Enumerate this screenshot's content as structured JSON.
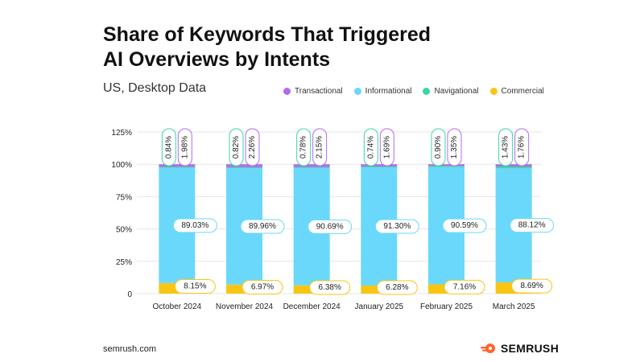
{
  "colors": {
    "transactional": "#B06BF0",
    "informational": "#6AD8FB",
    "navigational": "#3CD6A6",
    "commercial": "#F9C513",
    "grid": "#E6E6E6",
    "text": "#222222",
    "brand": "#FF642D"
  },
  "footer": {
    "site": "semrush.com",
    "brand": "SEMRUSH"
  },
  "chart_data": {
    "type": "bar",
    "stacked": true,
    "title": "Share of Keywords That Triggered AI Overviews by Intents",
    "title_lines": [
      "Share of Keywords That Triggered",
      "AI Overviews by Intents"
    ],
    "subtitle": "US, Desktop Data",
    "xlabel": "",
    "ylabel": "",
    "ylim": [
      0,
      125
    ],
    "yticks": [
      0,
      25,
      50,
      75,
      100,
      125
    ],
    "ytick_labels": [
      "0",
      "25%",
      "50%",
      "75%",
      "100%",
      "125%"
    ],
    "grid": true,
    "legend_position": "top-right",
    "categories": [
      "October 2024",
      "November 2024",
      "December 2024",
      "January 2025",
      "February 2025",
      "March 2025"
    ],
    "series": [
      {
        "name": "Commercial",
        "key": "commercial",
        "values": [
          8.15,
          6.97,
          6.38,
          6.28,
          7.16,
          8.69
        ],
        "labels": [
          "8.15%",
          "6.97%",
          "6.38%",
          "6.28%",
          "7.16%",
          "8.69%"
        ]
      },
      {
        "name": "Informational",
        "key": "informational",
        "values": [
          89.03,
          89.96,
          90.69,
          91.3,
          90.59,
          88.12
        ],
        "labels": [
          "89.03%",
          "89.96%",
          "90.69%",
          "91.30%",
          "90.59%",
          "88.12%"
        ]
      },
      {
        "name": "Navigational",
        "key": "navigational",
        "values": [
          0.84,
          0.82,
          0.78,
          0.74,
          0.9,
          1.43
        ],
        "labels": [
          "0.84%",
          "0.82%",
          "0.78%",
          "0.74%",
          "0.90%",
          "1.43%"
        ]
      },
      {
        "name": "Transactional",
        "key": "transactional",
        "values": [
          1.98,
          2.26,
          2.15,
          1.69,
          1.35,
          1.76
        ],
        "labels": [
          "1.98%",
          "2.26%",
          "2.15%",
          "1.69%",
          "1.35%",
          "1.76%"
        ]
      }
    ],
    "legend": [
      {
        "name": "Transactional",
        "key": "transactional"
      },
      {
        "name": "Informational",
        "key": "informational"
      },
      {
        "name": "Navigational",
        "key": "navigational"
      },
      {
        "name": "Commercial",
        "key": "commercial"
      }
    ]
  }
}
